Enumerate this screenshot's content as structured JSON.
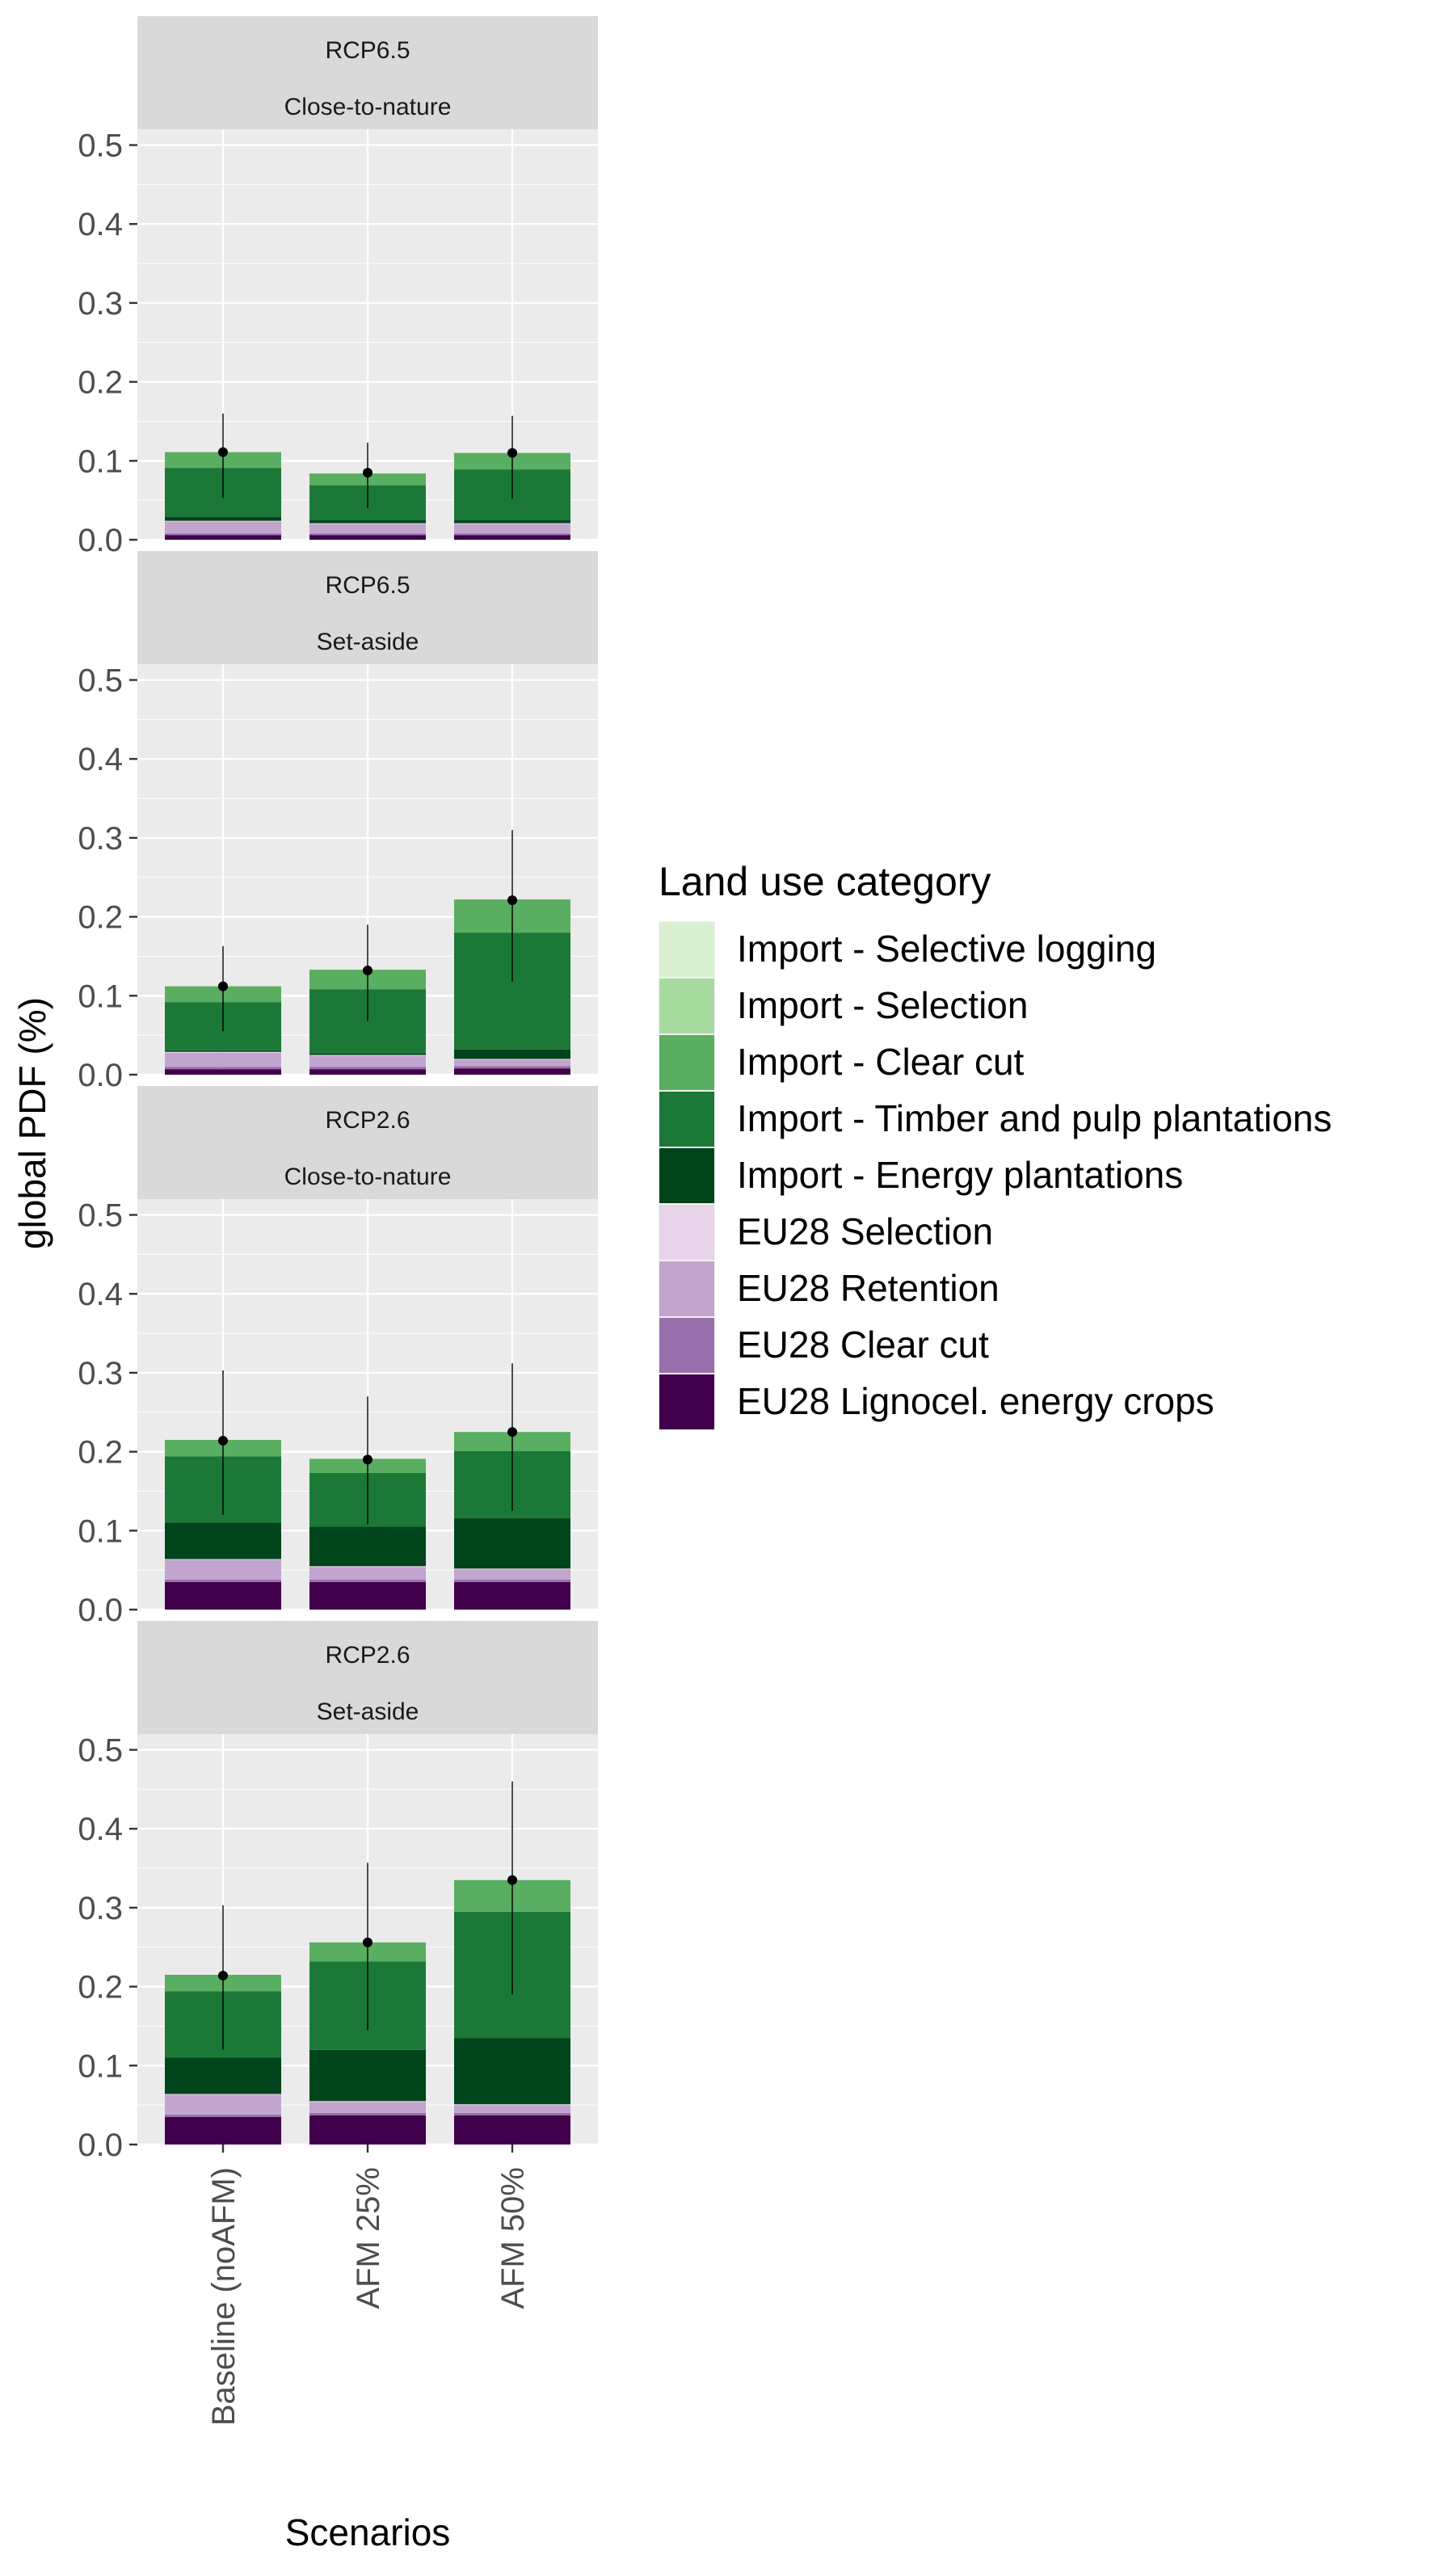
{
  "chart_data": {
    "type": "bar",
    "stacked": true,
    "facets": [
      {
        "row": "RCP6.5",
        "col": "Close-to-nature"
      },
      {
        "row": "RCP6.5",
        "col": "Set-aside"
      },
      {
        "row": "RCP2.6",
        "col": "Close-to-nature"
      },
      {
        "row": "RCP2.6",
        "col": "Set-aside"
      }
    ],
    "categories": [
      "Baseline (noAFM)",
      "AFM 25%",
      "AFM 50%"
    ],
    "ylabel": "global PDF (%)",
    "xlabel": "Scenarios",
    "ylim": [
      0,
      0.52
    ],
    "yticks": [
      "0.0",
      "0.1",
      "0.2",
      "0.3",
      "0.4",
      "0.5"
    ],
    "legend": {
      "title": "Land use category",
      "position": "right",
      "items": [
        {
          "name": "Import - Selective logging",
          "color": "#d9f0d3"
        },
        {
          "name": "Import - Selection",
          "color": "#a6dba0"
        },
        {
          "name": "Import - Clear cut",
          "color": "#5aae61"
        },
        {
          "name": "Import - Timber and pulp plantations",
          "color": "#1b7837"
        },
        {
          "name": "Import - Energy plantations",
          "color": "#00441b"
        },
        {
          "name": "EU28 Selection",
          "color": "#e7d4e8"
        },
        {
          "name": "EU28 Retention",
          "color": "#c2a5cf"
        },
        {
          "name": "EU28 Clear cut",
          "color": "#9970ab"
        },
        {
          "name": "EU28 Lignocel. energy crops",
          "color": "#40004b"
        }
      ]
    },
    "stack_order_bottom_to_top": [
      8,
      7,
      6,
      5,
      4,
      3,
      2,
      1,
      0
    ],
    "panels": [
      {
        "bars": [
          {
            "segments": [
              0.006,
              0.002,
              0.015,
              0.001,
              0.005,
              0.062,
              0.02,
              0,
              0
            ],
            "point": 0.111,
            "err": [
              0.053,
              0.16
            ]
          },
          {
            "segments": [
              0.006,
              0.002,
              0.012,
              0.001,
              0.004,
              0.044,
              0.015,
              0,
              0
            ],
            "point": 0.085,
            "err": [
              0.04,
              0.123
            ]
          },
          {
            "segments": [
              0.006,
              0.002,
              0.012,
              0.001,
              0.004,
              0.064,
              0.021,
              0,
              0
            ],
            "point": 0.11,
            "err": [
              0.052,
              0.157
            ]
          }
        ]
      },
      {
        "bars": [
          {
            "segments": [
              0.007,
              0.003,
              0.018,
              0.001,
              0.002,
              0.061,
              0.02,
              0,
              0
            ],
            "point": 0.112,
            "err": [
              0.055,
              0.163
            ]
          },
          {
            "segments": [
              0.007,
              0.003,
              0.014,
              0.001,
              0.002,
              0.081,
              0.025,
              0,
              0
            ],
            "point": 0.132,
            "err": [
              0.068,
              0.19
            ]
          },
          {
            "segments": [
              0.008,
              0.003,
              0.008,
              0.001,
              0.012,
              0.148,
              0.042,
              0,
              0
            ],
            "point": 0.221,
            "err": [
              0.118,
              0.31
            ]
          }
        ]
      },
      {
        "bars": [
          {
            "segments": [
              0.035,
              0.003,
              0.025,
              0.001,
              0.046,
              0.084,
              0.021,
              0,
              0
            ],
            "point": 0.214,
            "err": [
              0.12,
              0.303
            ]
          },
          {
            "segments": [
              0.035,
              0.003,
              0.016,
              0.001,
              0.05,
              0.068,
              0.018,
              0,
              0
            ],
            "point": 0.19,
            "err": [
              0.108,
              0.27
            ]
          },
          {
            "segments": [
              0.035,
              0.003,
              0.013,
              0.001,
              0.064,
              0.085,
              0.024,
              0,
              0
            ],
            "point": 0.225,
            "err": [
              0.125,
              0.312
            ]
          }
        ]
      },
      {
        "bars": [
          {
            "segments": [
              0.035,
              0.003,
              0.025,
              0.001,
              0.046,
              0.084,
              0.021,
              0,
              0
            ],
            "point": 0.214,
            "err": [
              0.12,
              0.303
            ]
          },
          {
            "segments": [
              0.037,
              0.003,
              0.014,
              0.001,
              0.065,
              0.112,
              0.024,
              0,
              0
            ],
            "point": 0.256,
            "err": [
              0.145,
              0.357
            ]
          },
          {
            "segments": [
              0.037,
              0.003,
              0.01,
              0.001,
              0.084,
              0.16,
              0.04,
              0,
              0
            ],
            "point": 0.335,
            "err": [
              0.19,
              0.46
            ]
          }
        ]
      }
    ]
  }
}
